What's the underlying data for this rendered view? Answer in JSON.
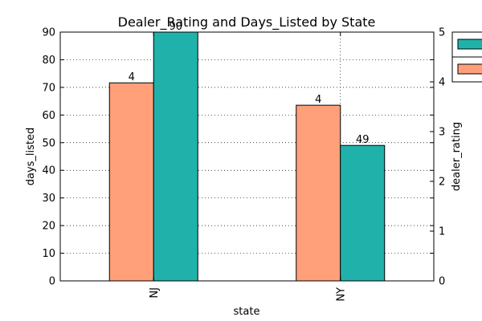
{
  "chart_data": {
    "type": "bar",
    "title": "Dealer_Rating and Days_Listed by State",
    "xlabel": "state",
    "categories": [
      "NJ",
      "NY"
    ],
    "left_axis": {
      "label": "days_listed",
      "ylim": [
        0,
        90
      ],
      "ticks": [
        0,
        10,
        20,
        30,
        40,
        50,
        60,
        70,
        80,
        90
      ]
    },
    "right_axis": {
      "label": "dealer_rating",
      "ylim": [
        0,
        5
      ],
      "ticks": [
        0,
        1,
        2,
        3,
        4,
        5
      ]
    },
    "series": [
      {
        "key": "dealer_rating",
        "axis": "right",
        "color": "#ffa07a",
        "values": [
          3.98,
          3.53
        ],
        "data_labels": [
          "4",
          "4"
        ]
      },
      {
        "key": "days_listed",
        "axis": "left",
        "color": "#20b2aa",
        "values": [
          90,
          49
        ],
        "data_labels": [
          "90",
          "49"
        ]
      }
    ],
    "grid": true,
    "legend": {
      "placement": "top-right",
      "entries": [
        "",
        ""
      ]
    }
  }
}
